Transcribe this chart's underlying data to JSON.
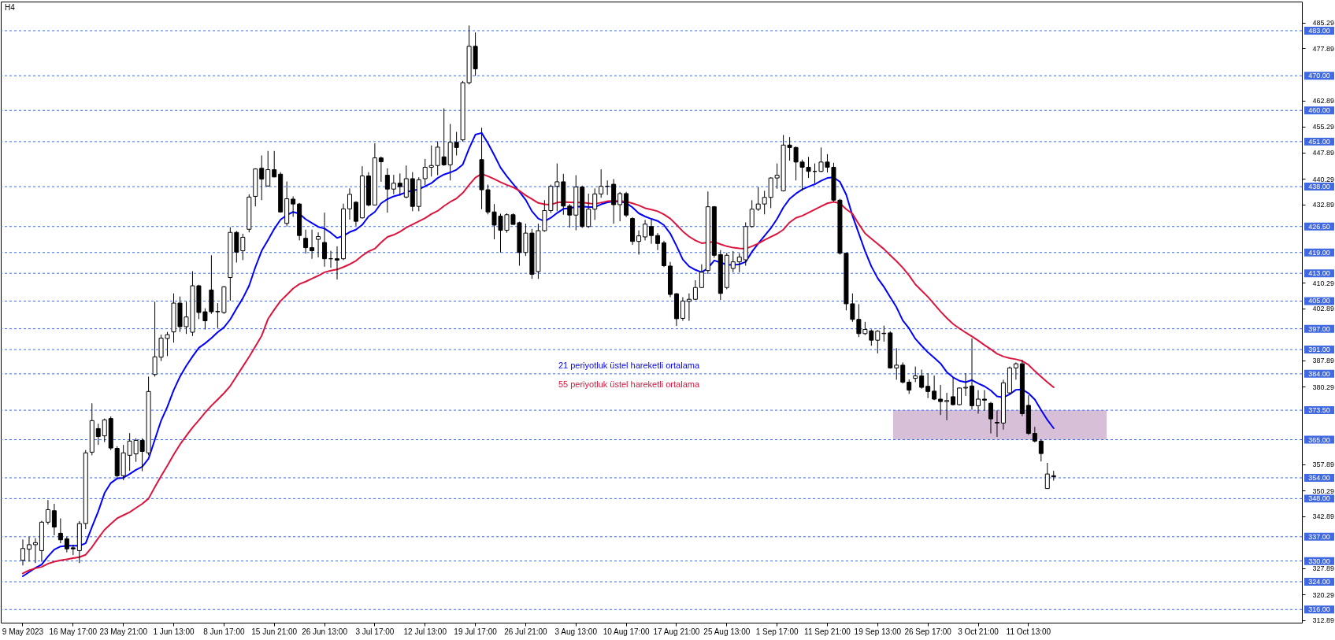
{
  "chart_data": {
    "type": "candlestick",
    "title": "H4",
    "color": "#000000",
    "categories": [
      "9 May 2023",
      null,
      null,
      null,
      null,
      null,
      null,
      null,
      "16 May 17:00",
      null,
      null,
      null,
      null,
      null,
      null,
      null,
      "23 May 21:00",
      null,
      null,
      null,
      null,
      null,
      null,
      null,
      "1 Jun 13:00",
      null,
      null,
      null,
      null,
      null,
      null,
      null,
      "8 Jun 17:00",
      null,
      null,
      null,
      null,
      null,
      null,
      null,
      "15 Jun 21:00",
      null,
      null,
      null,
      null,
      null,
      null,
      null,
      "26 Jun 13:00",
      null,
      null,
      null,
      null,
      null,
      null,
      null,
      "3 Jul 17:00",
      null,
      null,
      null,
      null,
      null,
      null,
      null,
      "12 Jul 13:00",
      null,
      null,
      null,
      null,
      null,
      null,
      null,
      "19 Jul 17:00",
      null,
      null,
      null,
      null,
      null,
      null,
      null,
      "26 Jul 21:00",
      null,
      null,
      null,
      null,
      null,
      null,
      null,
      "3 Aug 13:00",
      null,
      null,
      null,
      null,
      null,
      null,
      null,
      "10 Aug 17:00",
      null,
      null,
      null,
      null,
      null,
      null,
      null,
      "17 Aug 21:00",
      null,
      null,
      null,
      null,
      null,
      null,
      null,
      "25 Aug 13:00",
      null,
      null,
      null,
      null,
      null,
      null,
      null,
      "1 Sep 17:00",
      null,
      null,
      null,
      null,
      null,
      null,
      null,
      "11 Sep 21:00",
      null,
      null,
      null,
      null,
      null,
      null,
      null,
      "19 Sep 13:00",
      null,
      null,
      null,
      null,
      null,
      null,
      null,
      "26 Sep 17:00",
      null,
      null,
      null,
      null,
      null,
      null,
      null,
      "3 Oct 21:00",
      null,
      null,
      null,
      null,
      null,
      null,
      null,
      "11 Oct 13:00",
      null,
      null,
      null,
      null,
      null,
      null,
      null,
      null,
      null,
      null,
      null,
      null,
      null,
      null,
      null,
      null,
      null,
      null,
      null,
      null,
      null,
      null,
      null,
      null,
      null,
      null,
      null,
      null,
      null,
      null,
      null,
      null,
      null,
      null,
      null,
      null,
      null,
      null,
      null,
      null,
      null,
      null,
      null
    ],
    "ohlc": [
      [
        330.2,
        336.2,
        328.7,
        333.6
      ],
      [
        333.4,
        337.0,
        329.8,
        334.7
      ],
      [
        334.7,
        336.6,
        329.4,
        335.3
      ],
      [
        333.0,
        341.6,
        329.8,
        341.2
      ],
      [
        341.2,
        347.6,
        340.5,
        344.8
      ],
      [
        344.5,
        346.5,
        337.4,
        339.8
      ],
      [
        338.0,
        342.3,
        335.1,
        336.1
      ],
      [
        336.4,
        337.0,
        332.5,
        333.5
      ],
      [
        333.8,
        334.7,
        331.7,
        333.5
      ],
      [
        333.0,
        341.5,
        329.4,
        340.8
      ],
      [
        340.8,
        362.0,
        339.2,
        361.2
      ],
      [
        361.4,
        375.5,
        360.5,
        370.5
      ],
      [
        368.2,
        369.6,
        363.5,
        365.9
      ],
      [
        366.1,
        371.1,
        364.3,
        370.7
      ],
      [
        371.1,
        371.7,
        362.0,
        362.6
      ],
      [
        362.5,
        363.1,
        354.0,
        354.6
      ],
      [
        354.6,
        363.5,
        353.3,
        361.2
      ],
      [
        360.5,
        366.9,
        356.0,
        364.6
      ],
      [
        360.9,
        365.4,
        358.6,
        364.8
      ],
      [
        364.8,
        365.4,
        355.9,
        361.6
      ],
      [
        361.2,
        383.2,
        360.5,
        378.9
      ],
      [
        383.8,
        404.8,
        383.2,
        388.9
      ],
      [
        388.8,
        395.3,
        387.7,
        394.3
      ],
      [
        394.2,
        396.1,
        389.1,
        395.3
      ],
      [
        396.1,
        407.2,
        393.0,
        404.4
      ],
      [
        404.4,
        406.3,
        396.1,
        397.6
      ],
      [
        397.6,
        404.8,
        395.5,
        400.4
      ],
      [
        396.0,
        413.6,
        394.9,
        409.4
      ],
      [
        409.4,
        409.7,
        399.8,
        401.7
      ],
      [
        401.9,
        402.9,
        396.8,
        399.3
      ],
      [
        408.2,
        418.2,
        401.3,
        401.9
      ],
      [
        401.9,
        404.4,
        397.2,
        402.0
      ],
      [
        401.7,
        409.3,
        401.3,
        409.1
      ],
      [
        411.8,
        426.3,
        405.1,
        424.8
      ],
      [
        424.8,
        425.2,
        416.1,
        419.1
      ],
      [
        419.5,
        424.4,
        416.8,
        423.4
      ],
      [
        425.7,
        435.8,
        424.8,
        435.0
      ],
      [
        435.2,
        443.3,
        432.3,
        443.1
      ],
      [
        443.3,
        447.0,
        434.1,
        440.2
      ],
      [
        438.2,
        448.3,
        438.0,
        442.9
      ],
      [
        442.9,
        448.3,
        440.7,
        440.8
      ],
      [
        441.6,
        442.2,
        430.5,
        430.7
      ],
      [
        427.4,
        439.5,
        426.5,
        434.5
      ],
      [
        434.4,
        435.2,
        429.3,
        433.0
      ],
      [
        433.0,
        433.3,
        422.5,
        423.9
      ],
      [
        423.1,
        425.6,
        418.7,
        420.4
      ],
      [
        420.4,
        425.6,
        417.2,
        419.5
      ],
      [
        422.8,
        424.8,
        417.6,
        423.6
      ],
      [
        421.9,
        430.5,
        414.9,
        417.2
      ],
      [
        417.2,
        419.5,
        414.6,
        417.2
      ],
      [
        417.2,
        420.8,
        411.2,
        416.8
      ],
      [
        417.2,
        433.1,
        416.8,
        431.6
      ],
      [
        431.6,
        437.5,
        428.5,
        435.8
      ],
      [
        433.5,
        433.8,
        426.7,
        428.0
      ],
      [
        429.0,
        443.9,
        428.8,
        441.1
      ],
      [
        441.1,
        442.2,
        432.3,
        432.7
      ],
      [
        432.7,
        450.5,
        432.6,
        446.3
      ],
      [
        446.3,
        446.7,
        439.4,
        445.2
      ],
      [
        441.3,
        443.3,
        430.5,
        437.3
      ],
      [
        437.3,
        441.4,
        435.8,
        439.0
      ],
      [
        439.0,
        441.8,
        435.4,
        438.0
      ],
      [
        435.0,
        444.1,
        434.6,
        440.3
      ],
      [
        440.3,
        442.2,
        430.9,
        432.3
      ],
      [
        432.3,
        440.7,
        430.9,
        440.0
      ],
      [
        440.3,
        446.0,
        438.4,
        443.6
      ],
      [
        443.6,
        449.9,
        440.9,
        444.1
      ],
      [
        444.1,
        451.1,
        441.3,
        449.4
      ],
      [
        446.6,
        460.6,
        444.0,
        444.3
      ],
      [
        444.3,
        456.1,
        439.8,
        450.8
      ],
      [
        450.8,
        453.8,
        447.0,
        449.3
      ],
      [
        451.5,
        468.5,
        451.0,
        468.0
      ],
      [
        468.0,
        484.5,
        467.5,
        478.5
      ],
      [
        478.5,
        482.5,
        470.0,
        472.0
      ],
      [
        445.8,
        455.0,
        431.5,
        437.1
      ],
      [
        437.1,
        438.6,
        430.0,
        430.7
      ],
      [
        430.7,
        433.0,
        422.8,
        426.9
      ],
      [
        429.5,
        430.2,
        419.0,
        425.4
      ],
      [
        425.4,
        430.3,
        424.7,
        429.9
      ],
      [
        429.9,
        430.3,
        427.1,
        427.1
      ],
      [
        427.6,
        427.9,
        415.2,
        419.0
      ],
      [
        419.0,
        427.3,
        418.0,
        424.6
      ],
      [
        424.6,
        425.8,
        411.4,
        412.7
      ],
      [
        413.5,
        427.3,
        411.4,
        425.3
      ],
      [
        425.3,
        434.1,
        425.0,
        431.1
      ],
      [
        431.1,
        438.6,
        430.4,
        438.1
      ],
      [
        438.1,
        444.7,
        430.9,
        439.4
      ],
      [
        439.4,
        441.7,
        429.9,
        432.4
      ],
      [
        432.4,
        433.0,
        426.2,
        429.8
      ],
      [
        429.8,
        441.3,
        425.4,
        437.9
      ],
      [
        437.9,
        438.3,
        426.1,
        426.5
      ],
      [
        426.5,
        436.0,
        426.1,
        431.5
      ],
      [
        431.5,
        437.5,
        428.4,
        435.9
      ],
      [
        435.9,
        443.0,
        434.8,
        438.1
      ],
      [
        438.1,
        439.8,
        435.6,
        438.1
      ],
      [
        438.7,
        440.2,
        427.3,
        432.8
      ],
      [
        432.8,
        436.5,
        428.0,
        436.0
      ],
      [
        436.0,
        436.5,
        429.2,
        429.8
      ],
      [
        428.8,
        429.2,
        421.2,
        422.2
      ],
      [
        422.2,
        425.4,
        418.4,
        423.8
      ],
      [
        423.5,
        428.4,
        422.5,
        427.2
      ],
      [
        426.5,
        428.5,
        421.5,
        423.9
      ],
      [
        423.9,
        424.6,
        419.7,
        421.6
      ],
      [
        421.8,
        422.4,
        414.8,
        415.2
      ],
      [
        415.1,
        416.3,
        406.1,
        406.9
      ],
      [
        407.1,
        407.3,
        397.8,
        399.9
      ],
      [
        400.0,
        406.1,
        399.3,
        405.0
      ],
      [
        404.9,
        407.2,
        399.3,
        405.5
      ],
      [
        405.5,
        411.0,
        405.3,
        408.9
      ],
      [
        408.9,
        415.6,
        408.7,
        413.3
      ],
      [
        413.8,
        436.6,
        412.8,
        432.2
      ],
      [
        432.2,
        432.4,
        417.5,
        418.2
      ],
      [
        418.4,
        419.7,
        405.3,
        407.2
      ],
      [
        408.9,
        418.9,
        408.4,
        418.2
      ],
      [
        414.4,
        419.4,
        413.3,
        416.3
      ],
      [
        416.3,
        418.8,
        413.3,
        417.7
      ],
      [
        416.9,
        427.7,
        415.2,
        426.5
      ],
      [
        426.5,
        434.1,
        426.2,
        431.5
      ],
      [
        431.5,
        437.9,
        431.0,
        433.0
      ],
      [
        433.0,
        436.8,
        430.0,
        434.9
      ],
      [
        434.9,
        440.7,
        431.8,
        440.5
      ],
      [
        440.5,
        444.7,
        437.4,
        441.3
      ],
      [
        436.8,
        452.9,
        436.6,
        450.0
      ],
      [
        450.0,
        452.3,
        445.5,
        449.3
      ],
      [
        449.3,
        449.6,
        439.8,
        445.1
      ],
      [
        445.1,
        445.8,
        436.8,
        443.6
      ],
      [
        443.6,
        446.6,
        440.5,
        442.4
      ],
      [
        442.4,
        444.7,
        439.0,
        442.4
      ],
      [
        442.4,
        449.3,
        442.2,
        445.1
      ],
      [
        445.1,
        447.4,
        442.1,
        443.6
      ],
      [
        443.6,
        444.9,
        433.7,
        434.1
      ],
      [
        434.1,
        434.5,
        418.4,
        418.8
      ],
      [
        418.8,
        418.9,
        402.3,
        404.2
      ],
      [
        404.2,
        407.2,
        399.0,
        399.7
      ],
      [
        399.7,
        404.1,
        394.6,
        395.6
      ],
      [
        395.6,
        399.0,
        395.2,
        396.8
      ],
      [
        396.4,
        396.8,
        392.1,
        393.7
      ],
      [
        393.7,
        396.6,
        389.9,
        396.3
      ],
      [
        395.7,
        397.9,
        393.3,
        395.6
      ],
      [
        395.8,
        396.3,
        385.5,
        385.7
      ],
      [
        385.7,
        391.4,
        382.3,
        386.5
      ],
      [
        386.5,
        387.3,
        381.2,
        381.6
      ],
      [
        381.6,
        382.4,
        378.2,
        379.3
      ],
      [
        382.7,
        386.1,
        381.6,
        383.4
      ],
      [
        383.4,
        385.2,
        379.7,
        380.1
      ],
      [
        380.4,
        384.2,
        377.0,
        378.9
      ],
      [
        379.0,
        383.5,
        376.4,
        376.7
      ],
      [
        376.7,
        380.8,
        372.1,
        376.0
      ],
      [
        376.0,
        378.5,
        370.6,
        376.3
      ],
      [
        377.4,
        382.9,
        374.9,
        375.1
      ],
      [
        375.1,
        380.1,
        374.9,
        379.9
      ],
      [
        379.9,
        384.2,
        377.6,
        380.1
      ],
      [
        380.5,
        394.2,
        373.6,
        374.8
      ],
      [
        374.8,
        379.3,
        372.5,
        376.7
      ],
      [
        376.7,
        379.3,
        373.4,
        376.4
      ],
      [
        375.5,
        375.9,
        366.8,
        371.0
      ],
      [
        370.0,
        373.4,
        365.8,
        369.8
      ],
      [
        369.8,
        382.3,
        367.9,
        381.4
      ],
      [
        378.5,
        386.1,
        378.2,
        385.7
      ],
      [
        385.7,
        387.3,
        382.3,
        386.9
      ],
      [
        386.9,
        388.0,
        371.8,
        372.5
      ],
      [
        374.9,
        377.8,
        366.4,
        366.8
      ],
      [
        366.8,
        368.7,
        364.2,
        364.6
      ],
      [
        364.6,
        365.0,
        358.7,
        361.0
      ],
      [
        350.9,
        358.3,
        350.9,
        355.1
      ],
      [
        354.6,
        356.0,
        353.2,
        354.3
      ],
      null,
      null,
      null,
      null,
      null,
      null,
      null,
      null,
      null,
      null,
      null,
      null,
      null,
      null,
      null,
      null,
      null,
      null,
      null,
      null,
      null,
      null,
      null,
      null,
      null,
      null,
      null,
      null,
      null,
      null,
      null,
      null,
      null,
      null,
      null,
      null,
      null,
      null,
      null
    ],
    "series": [
      {
        "type": "line",
        "name": "21 periyotluk üstel hareketli ortalama",
        "color": "#0000ff",
        "values": [
          325.6,
          326.8,
          328.0,
          329.0,
          331.3,
          333.3,
          334.2,
          334.4,
          334.4,
          334.4,
          335.1,
          339.8,
          344.3,
          349.6,
          352.5,
          353.8,
          354.0,
          355.1,
          356.3,
          357.2,
          359.5,
          365.0,
          370.5,
          374.5,
          379.3,
          383.2,
          386.3,
          389.0,
          391.5,
          392.8,
          394.3,
          396.0,
          397.4,
          399.7,
          402.8,
          405.8,
          409.4,
          414.8,
          419.5,
          422.6,
          425.8,
          428.5,
          429.8,
          430.7,
          430.2,
          428.6,
          427.5,
          426.4,
          425.9,
          424.7,
          423.2,
          423.8,
          424.9,
          425.6,
          427.0,
          429.4,
          430.7,
          433.2,
          434.4,
          435.2,
          435.7,
          436.4,
          436.9,
          437.2,
          438.1,
          439.0,
          440.5,
          441.5,
          442.1,
          442.9,
          444.4,
          449.0,
          453.0,
          453.5,
          450.5,
          447.1,
          443.5,
          441.0,
          438.8,
          436.6,
          434.2,
          430.9,
          428.8,
          428.0,
          429.0,
          430.4,
          431.6,
          431.8,
          432.2,
          432.3,
          432.1,
          432.1,
          432.9,
          433.5,
          433.7,
          433.7,
          433.3,
          432.0,
          430.3,
          429.4,
          428.7,
          428.1,
          426.9,
          424.5,
          420.9,
          417.0,
          415.0,
          414.0,
          413.3,
          414.5,
          416.7,
          416.1,
          415.5,
          415.4,
          415.6,
          416.3,
          419.2,
          421.6,
          423.8,
          426.0,
          428.7,
          432.0,
          434.5,
          436.0,
          437.2,
          438.0,
          438.7,
          439.7,
          440.5,
          440.7,
          439.4,
          435.7,
          429.6,
          424.5,
          419.4,
          415.0,
          411.6,
          409.1,
          406.1,
          403.2,
          399.4,
          397.1,
          394.1,
          392.1,
          390.2,
          388.6,
          387.0,
          384.5,
          383.0,
          382.0,
          381.6,
          382.2,
          381.2,
          380.4,
          379.2,
          377.5,
          377.2,
          378.1,
          379.4,
          379.5,
          378.4,
          376.6,
          373.6,
          370.7,
          368.3,
          null,
          null,
          null,
          null,
          null,
          null,
          null,
          null,
          null,
          null,
          null,
          null,
          null,
          null,
          null,
          null,
          null,
          null,
          null,
          null,
          null,
          null,
          null,
          null,
          null,
          null,
          null,
          null,
          null,
          null,
          null,
          null,
          null,
          null,
          null,
          null,
          null,
          null,
          null
        ]
      },
      {
        "type": "line",
        "name": "55 periyotluk üstel hareketli ortalama",
        "color": "#dc143c",
        "values": [
          326.4,
          327.3,
          327.9,
          328.3,
          329.2,
          329.8,
          330.2,
          330.5,
          330.8,
          331.1,
          331.8,
          334.0,
          336.6,
          339.0,
          340.7,
          342.3,
          343.2,
          344.1,
          345.3,
          346.5,
          348.0,
          351.3,
          354.5,
          357.5,
          360.7,
          363.6,
          366.1,
          368.5,
          370.6,
          372.8,
          374.8,
          376.6,
          378.4,
          380.5,
          383.3,
          386.1,
          388.9,
          391.9,
          395.0,
          399.8,
          402.5,
          405.0,
          406.8,
          408.6,
          409.9,
          410.6,
          411.5,
          412.3,
          413.3,
          413.8,
          414.1,
          414.8,
          415.6,
          416.6,
          418.1,
          419.3,
          420.1,
          421.9,
          423.5,
          424.1,
          425.0,
          426.2,
          427.1,
          428.0,
          428.9,
          430.1,
          431.0,
          432.4,
          433.6,
          434.6,
          436.2,
          438.5,
          440.6,
          441.7,
          441.0,
          440.2,
          439.3,
          438.5,
          437.8,
          436.8,
          435.5,
          434.4,
          433.3,
          432.9,
          432.8,
          433.4,
          433.6,
          433.5,
          433.4,
          433.4,
          433.2,
          433.0,
          433.4,
          433.8,
          433.9,
          433.8,
          433.7,
          433.2,
          432.6,
          431.8,
          431.4,
          430.9,
          430.0,
          428.8,
          427.0,
          425.1,
          423.6,
          422.5,
          421.7,
          421.9,
          422.1,
          421.4,
          420.8,
          420.4,
          420.2,
          420.1,
          420.8,
          421.6,
          422.6,
          423.5,
          424.4,
          425.6,
          427.7,
          429.0,
          429.6,
          430.5,
          431.4,
          432.3,
          433.2,
          433.6,
          433.2,
          431.5,
          430.2,
          427.2,
          424.5,
          423.0,
          421.5,
          420.0,
          418.2,
          416.5,
          414.6,
          412.4,
          409.8,
          408.0,
          406.2,
          404.1,
          402.0,
          400.1,
          398.4,
          397.1,
          395.9,
          394.8,
          393.6,
          392.3,
          391.1,
          389.8,
          389.0,
          388.5,
          388.2,
          387.7,
          386.6,
          384.8,
          383.2,
          381.6,
          380.1,
          null,
          null,
          null,
          null,
          null,
          null,
          null,
          null,
          null,
          null,
          null,
          null,
          null,
          null,
          null,
          null,
          null,
          null,
          null,
          null,
          null,
          null,
          null,
          null,
          null,
          null,
          null,
          null,
          null,
          null,
          null,
          null,
          null,
          null,
          null,
          null,
          null,
          null,
          null
        ]
      }
    ],
    "bands": [
      {
        "axis": "y",
        "from": 365,
        "to": 373.5,
        "color": "#d8bfd8"
      }
    ],
    "ylim": [
      312.2,
      491.4
    ],
    "yticks": [
      312.89,
      320.29,
      327.89,
      342.89,
      350.29,
      357.89,
      380.29,
      387.89,
      402.89,
      410.29,
      432.89,
      440.29,
      447.89,
      455.29,
      462.89,
      477.89,
      485.29
    ],
    "ref_lines": [
      {
        "axis": "y",
        "value": 483,
        "label": "483.00",
        "color": "#4169e1",
        "line_style": "dashed"
      },
      {
        "axis": "y",
        "value": 470,
        "label": "470.00",
        "color": "#4169e1",
        "line_style": "dashed"
      },
      {
        "axis": "y",
        "value": 460,
        "label": "460.00",
        "color": "#4169e1",
        "line_style": "dashed"
      },
      {
        "axis": "y",
        "value": 451,
        "label": "451.00",
        "color": "#4169e1",
        "line_style": "dashed"
      },
      {
        "axis": "y",
        "value": 438,
        "label": "438.00",
        "color": "#4169e1",
        "line_style": "dashed"
      },
      {
        "axis": "y",
        "value": 426.5,
        "label": "426.50",
        "color": "#4169e1",
        "line_style": "dashed"
      },
      {
        "axis": "y",
        "value": 419,
        "label": "419.00",
        "color": "#4169e1",
        "line_style": "dashed"
      },
      {
        "axis": "y",
        "value": 413,
        "label": "413.00",
        "color": "#4169e1",
        "line_style": "dashed"
      },
      {
        "axis": "y",
        "value": 405,
        "label": "405.00",
        "color": "#4169e1",
        "line_style": "dashed"
      },
      {
        "axis": "y",
        "value": 397,
        "label": "397.00",
        "color": "#4169e1",
        "line_style": "dashed"
      },
      {
        "axis": "y",
        "value": 391,
        "label": "391.00",
        "color": "#4169e1",
        "line_style": "dashed"
      },
      {
        "axis": "y",
        "value": 384,
        "label": "384.00",
        "color": "#4169e1",
        "line_style": "dashed"
      },
      {
        "axis": "y",
        "value": 373.5,
        "label": "373.50",
        "color": "#4169e1",
        "line_style": "dashed"
      },
      {
        "axis": "y",
        "value": 365,
        "label": "365.00",
        "color": "#4169e1",
        "line_style": "dashed"
      },
      {
        "axis": "y",
        "value": 354,
        "label": "354.00",
        "color": "#4169e1",
        "line_style": "dashed"
      },
      {
        "axis": "y",
        "value": 348,
        "label": "348.00",
        "color": "#4169e1",
        "line_style": "dashed"
      },
      {
        "axis": "y",
        "value": 337,
        "label": "337.00",
        "color": "#4169e1",
        "line_style": "dashed"
      },
      {
        "axis": "y",
        "value": 330,
        "label": "330.00",
        "color": "#4169e1",
        "line_style": "dashed"
      },
      {
        "axis": "y",
        "value": 324,
        "label": "324.00",
        "color": "#4169e1",
        "line_style": "dashed"
      },
      {
        "axis": "y",
        "value": 316,
        "label": "316.00",
        "color": "#4169e1",
        "line_style": "dashed"
      }
    ]
  }
}
